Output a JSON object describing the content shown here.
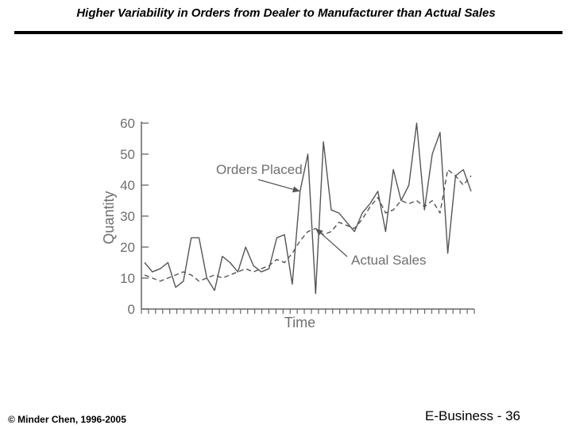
{
  "slide": {
    "title": "Higher Variability in Orders from Dealer to Manufacturer than Actual Sales",
    "footer_left": "© Minder Chen, 1996-2005",
    "footer_right": "E-Business - 36"
  },
  "chart_data": {
    "type": "line",
    "title": "",
    "xlabel": "Time",
    "ylabel": "Quantity",
    "ylim": [
      0,
      60
    ],
    "yticks": [
      0,
      10,
      20,
      30,
      40,
      50,
      60
    ],
    "xcount": 48,
    "grid": false,
    "series": [
      {
        "name": "Orders Placed",
        "style": "solid",
        "color": "#555555",
        "values": [
          15,
          12,
          13,
          15,
          7,
          9,
          23,
          23,
          10,
          6,
          17,
          15,
          12,
          20,
          14,
          12,
          13,
          23,
          24,
          8,
          38,
          50,
          5,
          54,
          32,
          31,
          28,
          25,
          31,
          34,
          38,
          25,
          45,
          35,
          40,
          60,
          32,
          50,
          57,
          18,
          43,
          45,
          38
        ]
      },
      {
        "name": "Actual Sales",
        "style": "dashed",
        "color": "#555555",
        "values": [
          11,
          10,
          9,
          10,
          11,
          12,
          11,
          9,
          10,
          11,
          10,
          11,
          12,
          13,
          12,
          13,
          14,
          16,
          15,
          18,
          22,
          25,
          26,
          24,
          25,
          28,
          27,
          26,
          29,
          33,
          36,
          31,
          32,
          35,
          34,
          35,
          33,
          35,
          31,
          45,
          43,
          40,
          43
        ]
      }
    ],
    "annotations": [
      {
        "text": "Orders Placed",
        "target_series": "Orders Placed"
      },
      {
        "text": "Actual Sales",
        "target_series": "Actual Sales"
      }
    ]
  }
}
